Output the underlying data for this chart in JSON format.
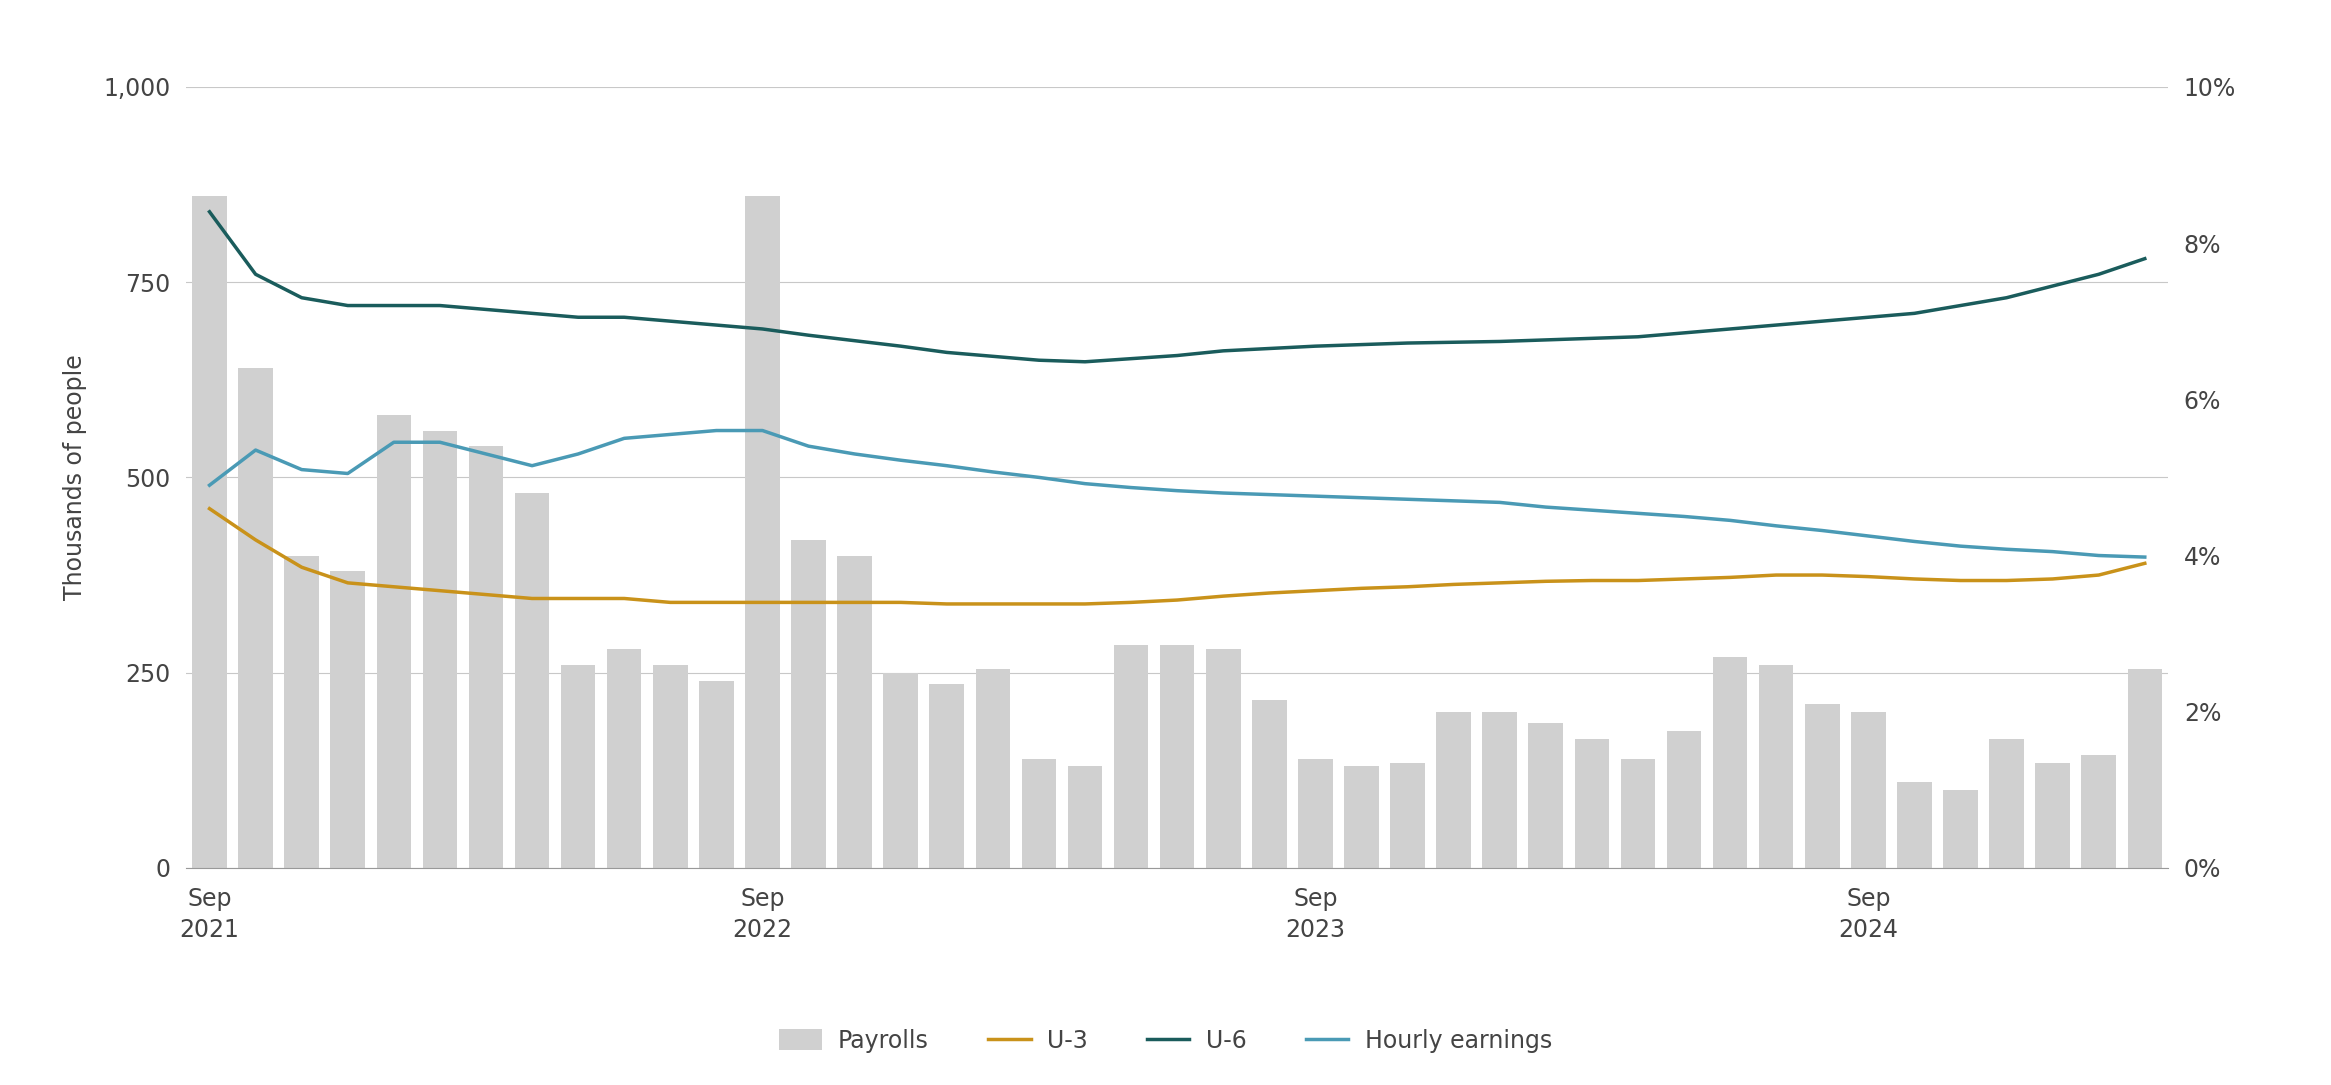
{
  "ylabel_left": "Thousands of people",
  "ylim_left": [
    0,
    1000
  ],
  "yticks_left": [
    0,
    250,
    500,
    750,
    1000
  ],
  "yticks_right": [
    0,
    0.02,
    0.04,
    0.06,
    0.08,
    0.1
  ],
  "xtick_labels": [
    "Sep\n2021",
    "Sep\n2022",
    "Sep\n2023",
    "Sep\n2024"
  ],
  "xtick_positions": [
    0,
    12,
    24,
    36
  ],
  "background_color": "#ffffff",
  "grid_color": "#c8c8c8",
  "bar_color": "#d0d0d0",
  "u3_color": "#c9921a",
  "u6_color": "#1a5c5c",
  "hourly_color": "#4a9ab5",
  "payrolls": [
    860,
    640,
    400,
    380,
    580,
    560,
    540,
    480,
    260,
    280,
    260,
    240,
    860,
    420,
    400,
    250,
    235,
    255,
    140,
    130,
    285,
    285,
    280,
    215,
    140,
    130,
    135,
    200,
    200,
    185,
    165,
    140,
    175,
    270,
    260,
    210,
    200,
    110,
    100,
    165,
    135,
    145,
    255
  ],
  "u3": [
    460,
    420,
    385,
    365,
    360,
    355,
    350,
    345,
    345,
    345,
    340,
    340,
    340,
    340,
    340,
    340,
    338,
    338,
    338,
    338,
    340,
    343,
    348,
    352,
    355,
    358,
    360,
    363,
    365,
    367,
    368,
    368,
    370,
    372,
    375,
    375,
    373,
    370,
    368,
    368,
    370,
    375,
    390
  ],
  "u6": [
    840,
    760,
    730,
    720,
    720,
    720,
    715,
    710,
    705,
    705,
    700,
    695,
    690,
    682,
    675,
    668,
    660,
    655,
    650,
    648,
    652,
    656,
    662,
    665,
    668,
    670,
    672,
    673,
    674,
    676,
    678,
    680,
    685,
    690,
    695,
    700,
    705,
    710,
    720,
    730,
    745,
    760,
    780
  ],
  "hourly": [
    490,
    535,
    510,
    505,
    545,
    545,
    530,
    515,
    530,
    550,
    555,
    560,
    560,
    540,
    530,
    522,
    515,
    507,
    500,
    492,
    487,
    483,
    480,
    478,
    476,
    474,
    472,
    470,
    468,
    462,
    458,
    454,
    450,
    445,
    438,
    432,
    425,
    418,
    412,
    408,
    405,
    400,
    398
  ],
  "n_bars": 43,
  "line_width": 2.5,
  "tick_fontsize": 17,
  "label_fontsize": 17,
  "legend_fontsize": 17
}
